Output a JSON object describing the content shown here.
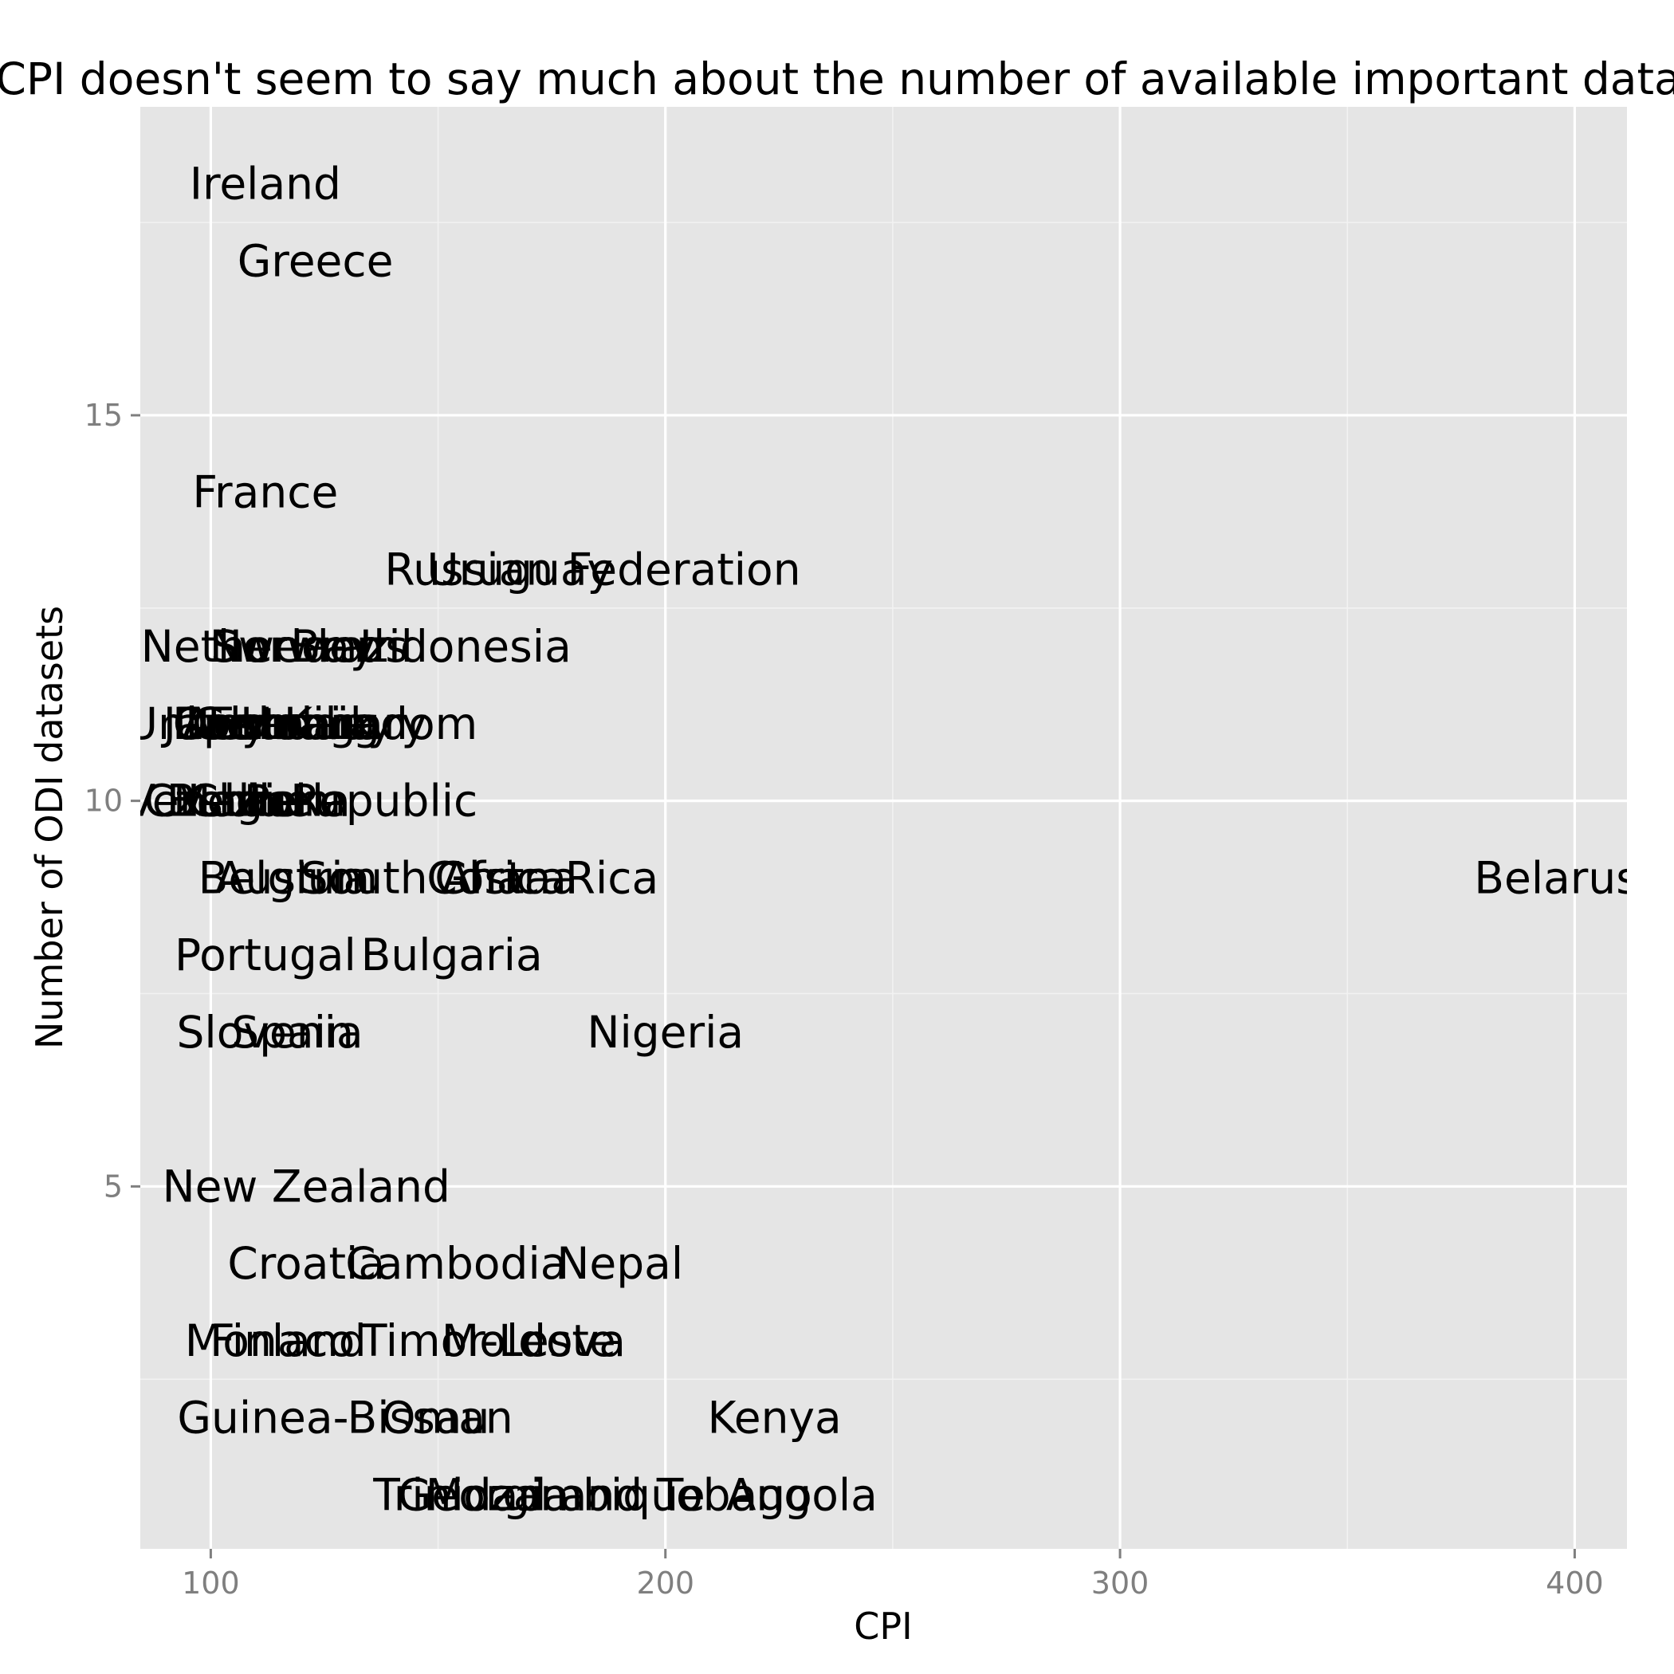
{
  "chart_data": {
    "type": "scatter",
    "title": "CPI doesn't seem to say much about the number of available important datasets",
    "xlabel": "CPI",
    "ylabel": "Number of ODI datasets",
    "xlim": [
      84.5,
      411.5
    ],
    "ylim": [
      0.3,
      19.0
    ],
    "x_ticks": [
      100,
      200,
      300,
      400
    ],
    "x_tick_labels": [
      "100",
      "200",
      "300",
      "400"
    ],
    "y_ticks": [
      5,
      10,
      15
    ],
    "y_tick_labels": [
      "5",
      "10",
      "15"
    ],
    "grid": true,
    "point_style": "text-labels",
    "points": [
      {
        "label": "Ireland",
        "x": 112,
        "y": 18
      },
      {
        "label": "Greece",
        "x": 123,
        "y": 17
      },
      {
        "label": "France",
        "x": 112,
        "y": 14
      },
      {
        "label": "Russian Federation",
        "x": 184,
        "y": 13
      },
      {
        "label": "Uruguay",
        "x": 168,
        "y": 13
      },
      {
        "label": "Netherlands",
        "x": 114,
        "y": 12
      },
      {
        "label": "Norway",
        "x": 118,
        "y": 12
      },
      {
        "label": "Sweden",
        "x": 119,
        "y": 12
      },
      {
        "label": "Brazil",
        "x": 131,
        "y": 12
      },
      {
        "label": "Indonesia",
        "x": 156,
        "y": 12
      },
      {
        "label": "Japan",
        "x": 103,
        "y": 11
      },
      {
        "label": "Italy",
        "x": 102,
        "y": 11
      },
      {
        "label": "Germany",
        "x": 118,
        "y": 11
      },
      {
        "label": "Denmark",
        "x": 114,
        "y": 11
      },
      {
        "label": "Canada",
        "x": 110,
        "y": 11
      },
      {
        "label": "United Kingdom",
        "x": 120,
        "y": 11
      },
      {
        "label": "Australia",
        "x": 115,
        "y": 11
      },
      {
        "label": "Estonia",
        "x": 117,
        "y": 11
      },
      {
        "label": "Hungary",
        "x": 127,
        "y": 11
      },
      {
        "label": "Chile",
        "x": 107,
        "y": 10
      },
      {
        "label": "Belgium",
        "x": 110,
        "y": 10
      },
      {
        "label": "Czech Republic",
        "x": 122,
        "y": 10
      },
      {
        "label": "Israel",
        "x": 108,
        "y": 10
      },
      {
        "label": "Malta",
        "x": 105,
        "y": 10
      },
      {
        "label": "Venezuela",
        "x": 106,
        "y": 10
      },
      {
        "label": "Peru",
        "x": 118,
        "y": 10
      },
      {
        "label": "Austria",
        "x": 118,
        "y": 9
      },
      {
        "label": "Belgium",
        "x": 117,
        "y": 9
      },
      {
        "label": "South Africa",
        "x": 149,
        "y": 9
      },
      {
        "label": "Costa Rica",
        "x": 173,
        "y": 9
      },
      {
        "label": "Ghana",
        "x": 165,
        "y": 9
      },
      {
        "label": "Belarus",
        "x": 396,
        "y": 9
      },
      {
        "label": "Portugal",
        "x": 112,
        "y": 8
      },
      {
        "label": "Bulgaria",
        "x": 153,
        "y": 8
      },
      {
        "label": "Slovenia",
        "x": 113,
        "y": 7
      },
      {
        "label": "Spain",
        "x": 118,
        "y": 7
      },
      {
        "label": "Nigeria",
        "x": 200,
        "y": 7
      },
      {
        "label": "New Zealand",
        "x": 121,
        "y": 5
      },
      {
        "label": "Croatia",
        "x": 121,
        "y": 4
      },
      {
        "label": "Cambodia",
        "x": 154,
        "y": 4
      },
      {
        "label": "Nepal",
        "x": 190,
        "y": 4
      },
      {
        "label": "Monaco",
        "x": 113,
        "y": 3
      },
      {
        "label": "Finland",
        "x": 117,
        "y": 3
      },
      {
        "label": "Timor-Leste",
        "x": 161,
        "y": 3
      },
      {
        "label": "Moldova",
        "x": 171,
        "y": 3
      },
      {
        "label": "Guinea-Bissau",
        "x": 127,
        "y": 2
      },
      {
        "label": "Oman",
        "x": 152,
        "y": 2
      },
      {
        "label": "Kenya",
        "x": 224,
        "y": 2
      },
      {
        "label": "Trinidad and Tobago",
        "x": 184,
        "y": 1
      },
      {
        "label": "Georgia",
        "x": 160,
        "y": 1
      },
      {
        "label": "Mozambique",
        "x": 178,
        "y": 1
      },
      {
        "label": "Angola",
        "x": 230,
        "y": 1
      }
    ]
  }
}
